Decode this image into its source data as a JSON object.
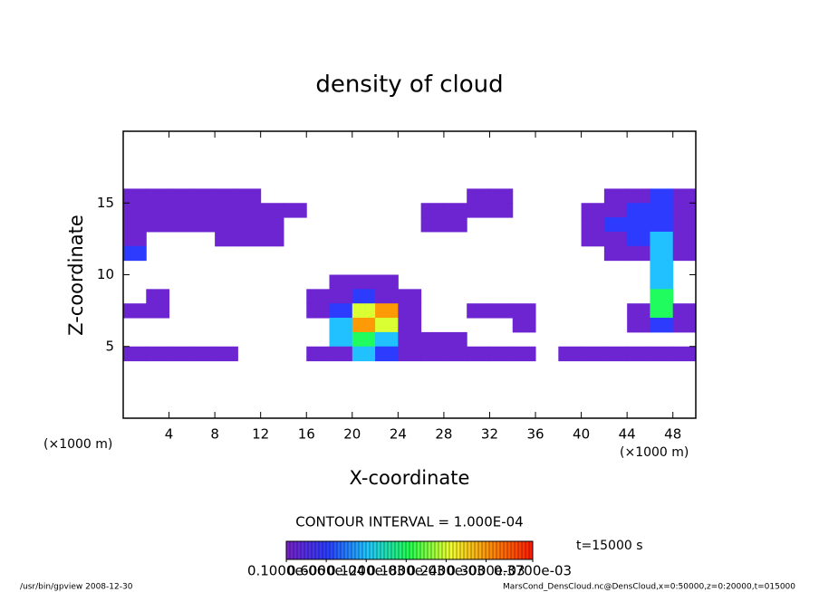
{
  "chart_data": {
    "type": "heatmap",
    "title": "density of cloud",
    "x_label": "X-coordinate",
    "y_label": "Z-coordinate",
    "unit_label": "(×1000 m)",
    "xlim": [
      0,
      50
    ],
    "ylim": [
      0,
      20
    ],
    "xticks": [
      4,
      8,
      12,
      16,
      20,
      24,
      28,
      32,
      36,
      40,
      44,
      48
    ],
    "yticks": [
      5,
      10,
      15
    ],
    "x": [
      1,
      3,
      5,
      7,
      9,
      11,
      13,
      15,
      17,
      19,
      21,
      23,
      25,
      27,
      29,
      31,
      33,
      35,
      37,
      39,
      41,
      43,
      45,
      47,
      49
    ],
    "y": [
      15.5,
      14.5,
      13.5,
      12.5,
      11.5,
      10.5,
      9.5,
      8.5,
      7.5,
      6.5,
      5.5,
      4.5
    ],
    "values": [
      [
        1e-05,
        1e-05,
        1e-05,
        1e-05,
        1e-05,
        1e-05,
        0,
        0,
        0,
        0,
        0,
        0,
        0,
        0,
        0,
        1e-05,
        1e-05,
        0,
        0,
        0,
        0,
        1e-05,
        1e-05,
        6e-05,
        1e-05
      ],
      [
        1e-05,
        1e-05,
        1e-05,
        1e-05,
        1e-05,
        1e-05,
        1e-05,
        1e-05,
        0,
        0,
        0,
        0,
        0,
        1e-05,
        1e-05,
        1e-05,
        1e-05,
        0,
        0,
        0,
        1e-05,
        1e-05,
        6e-05,
        6e-05,
        1e-05
      ],
      [
        1e-05,
        1e-05,
        1e-05,
        1e-05,
        1e-05,
        1e-05,
        1e-05,
        0,
        0,
        0,
        0,
        0,
        0,
        1e-05,
        1e-05,
        0,
        0,
        0,
        0,
        0,
        1e-05,
        6e-05,
        6e-05,
        6e-05,
        1e-05
      ],
      [
        1e-05,
        0,
        0,
        0,
        1e-05,
        1e-05,
        1e-05,
        0,
        0,
        0,
        0,
        0,
        0,
        0,
        0,
        0,
        0,
        0,
        0,
        0,
        1e-05,
        1e-05,
        6e-05,
        0.00012,
        1e-05
      ],
      [
        6e-05,
        0,
        0,
        0,
        0,
        0,
        0,
        0,
        0,
        0,
        0,
        0,
        0,
        0,
        0,
        0,
        0,
        0,
        0,
        0,
        0,
        1e-05,
        1e-05,
        0.00012,
        1e-05
      ],
      [
        0,
        0,
        0,
        0,
        0,
        0,
        0,
        0,
        0,
        0,
        0,
        0,
        0,
        0,
        0,
        0,
        0,
        0,
        0,
        0,
        0,
        0,
        0,
        0.00012,
        0
      ],
      [
        0,
        0,
        0,
        0,
        0,
        0,
        0,
        0,
        0,
        1e-05,
        1e-05,
        1e-05,
        0,
        0,
        0,
        0,
        0,
        0,
        0,
        0,
        0,
        0,
        0,
        0.00012,
        0
      ],
      [
        0,
        1e-05,
        0,
        0,
        0,
        0,
        0,
        0,
        1e-05,
        1e-05,
        6e-05,
        1e-05,
        1e-05,
        0,
        0,
        0,
        0,
        0,
        0,
        0,
        0,
        0,
        0,
        0.00018,
        0
      ],
      [
        1e-05,
        1e-05,
        0,
        0,
        0,
        0,
        0,
        0,
        1e-05,
        6e-05,
        0.00024,
        0.0003,
        1e-05,
        0,
        0,
        1e-05,
        1e-05,
        1e-05,
        0,
        0,
        0,
        0,
        1e-05,
        0.00018,
        1e-05
      ],
      [
        0,
        0,
        0,
        0,
        0,
        0,
        0,
        0,
        0,
        0.00012,
        0.0003,
        0.00024,
        1e-05,
        0,
        0,
        0,
        0,
        1e-05,
        0,
        0,
        0,
        0,
        1e-05,
        6e-05,
        1e-05
      ],
      [
        0,
        0,
        0,
        0,
        0,
        0,
        0,
        0,
        0,
        0.00012,
        0.00018,
        0.00012,
        1e-05,
        1e-05,
        1e-05,
        0,
        0,
        0,
        0,
        0,
        0,
        0,
        0,
        0,
        0
      ],
      [
        1e-05,
        1e-05,
        1e-05,
        1e-05,
        1e-05,
        0,
        0,
        0,
        1e-05,
        1e-05,
        0.00012,
        6e-05,
        1e-05,
        1e-05,
        1e-05,
        1e-05,
        1e-05,
        1e-05,
        0,
        1e-05,
        1e-05,
        1e-05,
        1e-05,
        1e-05,
        1e-05
      ]
    ],
    "colormap": [
      "#7a1fc8",
      "#2a3cff",
      "#20c8ff",
      "#20ff50",
      "#f0ff30",
      "#ff8a00",
      "#ff1a00"
    ],
    "clim": [
      0,
      0.00037
    ],
    "cticks": [
      {
        "value": 1e-07,
        "label": "0.1000e-06"
      },
      {
        "value": 6e-05,
        "label": "0.6000e-04"
      },
      {
        "value": 0.00012,
        "label": "0.1200e-03"
      },
      {
        "value": 0.00018,
        "label": "0.1800e-03"
      },
      {
        "value": 0.00024,
        "label": "0.2400e-03"
      },
      {
        "value": 0.0003,
        "label": "0.3000e-03"
      },
      {
        "value": 0.00037,
        "label": "0.3700e-03"
      }
    ],
    "contour_interval": "CONTOUR INTERVAL = 1.000E-04",
    "time_label": "t=15000 s",
    "footer_left": "/usr/bin/gpview  2008-12-30",
    "footer_right": "MarsCond_DensCloud.nc@DensCloud,x=0:50000,z=0:20000,t=015000"
  }
}
